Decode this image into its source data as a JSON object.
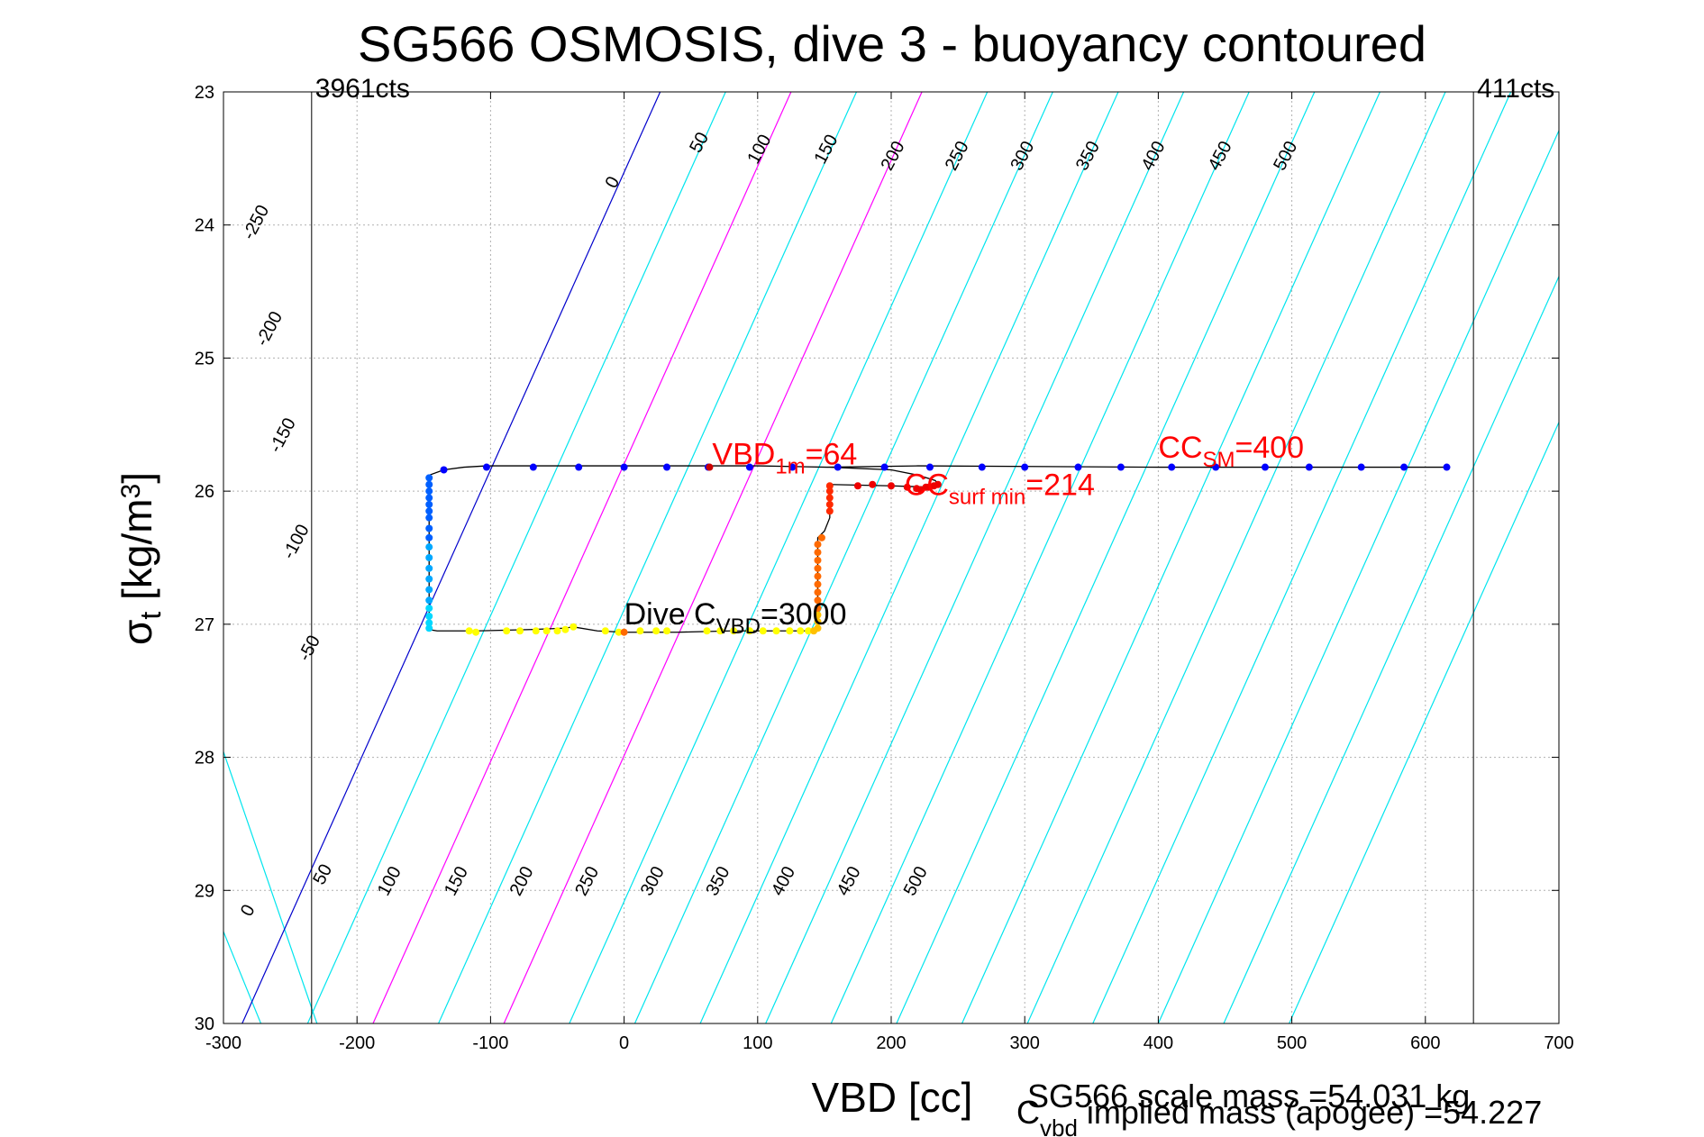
{
  "chart_data": {
    "type": "scatter",
    "title": "SG566 OSMOSIS, dive 3 - buoyancy contoured",
    "xlabel": "VBD [cc]",
    "ylabel": {
      "base": "σ",
      "sub": "t",
      "unit_pre": " [kg/m",
      "unit_sup": "3",
      "unit_post": "]"
    },
    "xlim": [
      -300,
      700
    ],
    "ylim": [
      23,
      30
    ],
    "y_reversed": true,
    "grid": true,
    "x_ticks": [
      -300,
      -200,
      -100,
      0,
      100,
      200,
      300,
      400,
      500,
      600,
      700
    ],
    "y_ticks": [
      23,
      24,
      25,
      26,
      27,
      28,
      29,
      30
    ],
    "x_tick_labels": [
      "-300",
      "-200",
      "-100",
      "0",
      "100",
      "200",
      "300",
      "400",
      "500",
      "600",
      "700"
    ],
    "y_tick_labels": [
      "23",
      "24",
      "25",
      "26",
      "27",
      "28",
      "29",
      "30"
    ],
    "vbd_limits": [
      {
        "x": -234,
        "label": "3961cts"
      },
      {
        "x": 636,
        "label": "411cts"
      }
    ],
    "contours": {
      "description_values": [
        -250,
        -200,
        -150,
        -100,
        -50,
        0,
        50,
        100,
        150,
        200,
        250,
        300,
        350,
        400,
        450,
        500
      ],
      "lines": [
        {
          "x_at_30": -396,
          "x_at_23": -820,
          "color": "#00e5ee"
        },
        {
          "x_at_30": -352,
          "x_at_23": -730,
          "color": "#00e5ee"
        },
        {
          "x_at_30": -310,
          "x_at_23": -642,
          "color": "#00e5ee"
        },
        {
          "x_at_30": -272,
          "x_at_23": -556,
          "color": "#00e5ee"
        },
        {
          "x_at_30": -230,
          "x_at_23": -470,
          "color": "#00e5ee"
        },
        {
          "x_at_30": -286,
          "x_at_23": 27,
          "color": "#0000cc"
        },
        {
          "x_at_30": -237,
          "x_at_23": 76,
          "color": "#00e5ee"
        },
        {
          "x_at_30": -188,
          "x_at_23": 125,
          "color": "#ff00ff"
        },
        {
          "x_at_30": -139,
          "x_at_23": 174,
          "color": "#00e5ee"
        },
        {
          "x_at_30": -90,
          "x_at_23": 223,
          "color": "#ff00ff"
        },
        {
          "x_at_30": -41,
          "x_at_23": 272,
          "color": "#00e5ee"
        },
        {
          "x_at_30": 8,
          "x_at_23": 321,
          "color": "#00e5ee"
        },
        {
          "x_at_30": 57,
          "x_at_23": 370,
          "color": "#00e5ee"
        },
        {
          "x_at_30": 106,
          "x_at_23": 419,
          "color": "#00e5ee"
        },
        {
          "x_at_30": 155,
          "x_at_23": 468,
          "color": "#00e5ee"
        },
        {
          "x_at_30": 204,
          "x_at_23": 517,
          "color": "#00e5ee"
        },
        {
          "x_at_30": 253,
          "x_at_23": 566,
          "color": "#00e5ee"
        },
        {
          "x_at_30": 302,
          "x_at_23": 615,
          "color": "#00e5ee"
        },
        {
          "x_at_30": 351,
          "x_at_23": 664,
          "color": "#00e5ee"
        },
        {
          "x_at_30": 400,
          "x_at_23": 713,
          "color": "#00e5ee"
        },
        {
          "x_at_30": 449,
          "x_at_23": 762,
          "color": "#00e5ee"
        },
        {
          "x_at_30": 498,
          "x_at_23": 811,
          "color": "#00e5ee"
        }
      ],
      "labels_upper": [
        {
          "text": "-250",
          "x": -272,
          "y": 24.0
        },
        {
          "text": "-200",
          "x": -262,
          "y": 24.8
        },
        {
          "text": "-150",
          "x": -252,
          "y": 25.6
        },
        {
          "text": "-100",
          "x": -242,
          "y": 26.4
        },
        {
          "text": "-50",
          "x": -232,
          "y": 27.2
        },
        {
          "text": "0",
          "x": -5,
          "y": 23.7
        },
        {
          "text": "50",
          "x": 60,
          "y": 23.4
        },
        {
          "text": "100",
          "x": 105,
          "y": 23.45
        },
        {
          "text": "150",
          "x": 155,
          "y": 23.45
        },
        {
          "text": "200",
          "x": 205,
          "y": 23.5
        },
        {
          "text": "250",
          "x": 253,
          "y": 23.5
        },
        {
          "text": "300",
          "x": 302,
          "y": 23.5
        },
        {
          "text": "350",
          "x": 351,
          "y": 23.5
        },
        {
          "text": "400",
          "x": 400,
          "y": 23.5
        },
        {
          "text": "450",
          "x": 450,
          "y": 23.5
        },
        {
          "text": "500",
          "x": 499,
          "y": 23.5
        }
      ],
      "labels_lower": [
        {
          "text": "0",
          "x": -278,
          "y": 29.17
        },
        {
          "text": "50",
          "x": -222,
          "y": 28.9
        },
        {
          "text": "100",
          "x": -172,
          "y": 28.95
        },
        {
          "text": "150",
          "x": -122,
          "y": 28.95
        },
        {
          "text": "200",
          "x": -73,
          "y": 28.95
        },
        {
          "text": "250",
          "x": -24,
          "y": 28.95
        },
        {
          "text": "300",
          "x": 25,
          "y": 28.95
        },
        {
          "text": "350",
          "x": 74,
          "y": 28.95
        },
        {
          "text": "400",
          "x": 123,
          "y": 28.95
        },
        {
          "text": "450",
          "x": 172,
          "y": 28.95
        },
        {
          "text": "500",
          "x": 222,
          "y": 28.95
        }
      ]
    },
    "trace": {
      "color": "#000000",
      "points": [
        [
          616,
          25.82
        ],
        [
          400,
          25.82
        ],
        [
          220,
          25.81
        ],
        [
          152,
          25.82
        ],
        [
          100,
          25.81
        ],
        [
          -103,
          25.81
        ],
        [
          -120,
          25.82
        ],
        [
          -135,
          25.84
        ],
        [
          -146,
          25.88
        ],
        [
          -146,
          27.04
        ],
        [
          -140,
          27.05
        ],
        [
          -110,
          27.05
        ],
        [
          -70,
          27.04
        ],
        [
          -45,
          27.03
        ],
        [
          -38,
          27.02
        ],
        [
          -20,
          27.05
        ],
        [
          0,
          27.06
        ],
        [
          40,
          27.06
        ],
        [
          80,
          27.05
        ],
        [
          120,
          27.05
        ],
        [
          140,
          27.05
        ],
        [
          145,
          27.04
        ],
        [
          145,
          26.35
        ],
        [
          150,
          26.3
        ],
        [
          154,
          26.2
        ],
        [
          154,
          25.95
        ],
        [
          200,
          25.96
        ],
        [
          230,
          25.97
        ],
        [
          236,
          25.96
        ],
        [
          233,
          25.92
        ],
        [
          220,
          25.88
        ],
        [
          200,
          25.84
        ],
        [
          154,
          25.82
        ]
      ]
    },
    "series": [
      {
        "name": "",
        "color": "#0000ff",
        "points": [
          [
            616,
            25.82
          ],
          [
            584,
            25.82
          ],
          [
            552,
            25.82
          ],
          [
            513,
            25.82
          ],
          [
            480,
            25.82
          ],
          [
            443,
            25.82
          ],
          [
            410,
            25.82
          ],
          [
            372,
            25.82
          ],
          [
            340,
            25.82
          ],
          [
            300,
            25.82
          ],
          [
            268,
            25.82
          ],
          [
            229,
            25.82
          ],
          [
            195,
            25.82
          ],
          [
            160,
            25.82
          ],
          [
            126,
            25.82
          ],
          [
            94,
            25.82
          ],
          [
            63,
            25.82
          ],
          [
            32,
            25.82
          ],
          [
            0,
            25.82
          ],
          [
            -34,
            25.82
          ],
          [
            -68,
            25.82
          ],
          [
            -103,
            25.82
          ],
          [
            -135,
            25.84
          ]
        ]
      },
      {
        "name": "",
        "color": "#0060ff",
        "points": [
          [
            -146,
            25.9
          ],
          [
            -146,
            25.95
          ],
          [
            -146,
            26.0
          ],
          [
            -146,
            26.05
          ],
          [
            -146,
            26.1
          ],
          [
            -146,
            26.15
          ],
          [
            -146,
            26.2
          ],
          [
            -146,
            26.28
          ],
          [
            -146,
            26.35
          ]
        ]
      },
      {
        "name": "",
        "color": "#00a8ff",
        "points": [
          [
            -146,
            26.42
          ],
          [
            -146,
            26.5
          ],
          [
            -146,
            26.58
          ],
          [
            -146,
            26.66
          ],
          [
            -146,
            26.74
          ],
          [
            -146,
            26.82
          ]
        ]
      },
      {
        "name": "",
        "color": "#00d8ff",
        "points": [
          [
            -146,
            26.88
          ],
          [
            -146,
            26.94
          ],
          [
            -146,
            26.99
          ],
          [
            -146,
            27.03
          ]
        ]
      },
      {
        "name": "",
        "color": "#ffff00",
        "points": [
          [
            -116,
            27.05
          ],
          [
            -111,
            27.06
          ],
          [
            -88,
            27.05
          ],
          [
            -78,
            27.05
          ],
          [
            -66,
            27.05
          ],
          [
            -58,
            27.05
          ],
          [
            -50,
            27.05
          ],
          [
            -44,
            27.04
          ],
          [
            -38,
            27.02
          ],
          [
            -14,
            27.05
          ],
          [
            -4,
            27.06
          ],
          [
            12,
            27.05
          ],
          [
            24,
            27.05
          ],
          [
            32,
            27.05
          ],
          [
            62,
            27.05
          ],
          [
            72,
            27.05
          ],
          [
            82,
            27.05
          ],
          [
            94,
            27.05
          ],
          [
            104,
            27.05
          ],
          [
            114,
            27.05
          ],
          [
            124,
            27.05
          ],
          [
            132,
            27.05
          ],
          [
            138,
            27.05
          ]
        ]
      },
      {
        "name": "",
        "color": "#ffc000",
        "points": [
          [
            142,
            27.05
          ],
          [
            145,
            27.03
          ],
          [
            145,
            26.98
          ],
          [
            145,
            26.93
          ]
        ]
      },
      {
        "name": "",
        "color": "#ff6a00",
        "points": [
          [
            145,
            26.88
          ],
          [
            145,
            26.82
          ],
          [
            145,
            26.76
          ],
          [
            145,
            26.7
          ],
          [
            145,
            26.64
          ],
          [
            145,
            26.58
          ],
          [
            145,
            26.52
          ],
          [
            145,
            26.46
          ],
          [
            145,
            26.4
          ],
          [
            148,
            26.35
          ]
        ]
      },
      {
        "name": "",
        "color": "#ff2a00",
        "points": [
          [
            154,
            26.15
          ],
          [
            154,
            26.1
          ],
          [
            154,
            26.05
          ],
          [
            154,
            26.0
          ],
          [
            154,
            25.96
          ]
        ]
      },
      {
        "name": "",
        "color": "#ee0000",
        "points": [
          [
            175,
            25.96
          ],
          [
            186,
            25.95
          ],
          [
            200,
            25.96
          ],
          [
            212,
            25.97
          ],
          [
            219,
            25.98
          ],
          [
            222,
            25.99
          ],
          [
            228,
            25.97
          ],
          [
            232,
            25.96
          ],
          [
            235,
            25.95
          ],
          [
            226,
            25.97
          ]
        ]
      },
      {
        "name": "",
        "color": "#cc0000",
        "points": [
          [
            64,
            25.82
          ]
        ]
      },
      {
        "name": "",
        "color": "#ff6a00",
        "points": [
          [
            0,
            27.06
          ]
        ]
      }
    ],
    "annotations": [
      {
        "base": "VBD",
        "sub": "1m",
        "tail": "=64",
        "color": "#ff0000",
        "x": 66,
        "y": 25.8
      },
      {
        "base": "CC",
        "sub": "SM",
        "tail": "=400",
        "color": "#ff0000",
        "x": 400,
        "y": 25.75
      },
      {
        "base": "CC",
        "sub": "surf min",
        "tail": "=214",
        "color": "#ff0000",
        "x": 210,
        "y": 26.03
      },
      {
        "base": "Dive C",
        "sub": "VBD",
        "tail": "=3000",
        "color": "#000000",
        "x": 0,
        "y": 27.0
      }
    ],
    "footer": {
      "line1": "SG566 scale mass =54.031 kg",
      "line2_base": "C",
      "line2_sub": "vbd",
      "line2_tail": " implied mass (apogee) =54.227"
    }
  }
}
